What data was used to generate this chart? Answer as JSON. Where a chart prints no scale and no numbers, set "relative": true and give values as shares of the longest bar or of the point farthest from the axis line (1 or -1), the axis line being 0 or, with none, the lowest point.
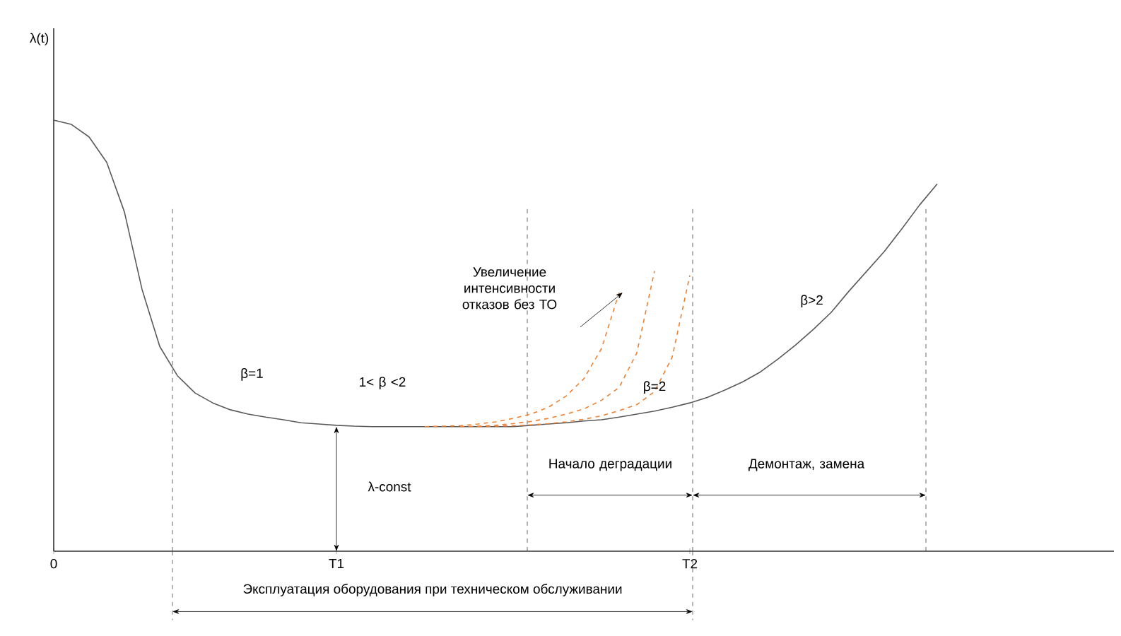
{
  "chart_data": {
    "type": "line",
    "relative": true,
    "categories": [
      "0",
      null,
      null,
      null,
      null,
      null,
      null,
      null,
      null,
      null,
      null,
      null,
      null,
      null,
      null,
      null,
      "T1",
      null,
      null,
      null,
      null,
      null,
      null,
      null,
      null,
      null,
      null,
      null,
      null,
      null,
      null,
      null,
      null,
      null,
      null,
      null,
      "T2",
      null,
      null,
      null,
      null,
      null,
      null,
      null,
      null,
      null,
      null,
      null,
      null,
      null,
      null,
      null,
      null,
      null,
      null,
      null,
      null,
      null,
      null,
      null,
      null
    ],
    "series": [
      {
        "color": "#595959",
        "line_style": "solid",
        "values": [
          1.0,
          0.99,
          0.961,
          0.902,
          0.787,
          0.607,
          0.475,
          0.407,
          0.367,
          0.344,
          0.328,
          0.318,
          0.311,
          0.305,
          0.298,
          0.295,
          0.292,
          0.29,
          0.289,
          0.289,
          0.289,
          0.289,
          0.289,
          0.289,
          0.289,
          0.289,
          0.289,
          0.292,
          0.295,
          0.298,
          0.302,
          0.305,
          0.311,
          0.318,
          0.325,
          0.334,
          0.344,
          0.357,
          0.374,
          0.393,
          0.416,
          0.446,
          0.479,
          0.515,
          0.554,
          0.603,
          0.649,
          0.695,
          0.748,
          0.803,
          0.852,
          null,
          null,
          null,
          null,
          null,
          null,
          null,
          null,
          null,
          null
        ]
      },
      {
        "color": "#f08030",
        "line_style": "dashed",
        "values": [
          null,
          null,
          null,
          null,
          null,
          null,
          null,
          null,
          null,
          null,
          null,
          null,
          null,
          null,
          null,
          null,
          null,
          null,
          null,
          null,
          null,
          0.289,
          0.29,
          0.291,
          0.295,
          0.3,
          0.308,
          0.318,
          0.334,
          0.36,
          0.4,
          0.47,
          0.6,
          null,
          null,
          null,
          null,
          null,
          null,
          null,
          null,
          null,
          null,
          null,
          null,
          null,
          null,
          null,
          null,
          null,
          null,
          null,
          null,
          null,
          null,
          null,
          null,
          null,
          null,
          null,
          null
        ]
      },
      {
        "color": "#f08030",
        "line_style": "dashed",
        "values": [
          null,
          null,
          null,
          null,
          null,
          null,
          null,
          null,
          null,
          null,
          null,
          null,
          null,
          null,
          null,
          null,
          null,
          null,
          null,
          null,
          null,
          null,
          null,
          0.289,
          0.29,
          0.292,
          0.296,
          0.301,
          0.308,
          0.318,
          0.33,
          0.35,
          0.38,
          0.46,
          0.65,
          null,
          null,
          null,
          null,
          null,
          null,
          null,
          null,
          null,
          null,
          null,
          null,
          null,
          null,
          null,
          null,
          null,
          null,
          null,
          null,
          null,
          null,
          null,
          null,
          null,
          null
        ]
      },
      {
        "color": "#f08030",
        "line_style": "dashed",
        "values": [
          null,
          null,
          null,
          null,
          null,
          null,
          null,
          null,
          null,
          null,
          null,
          null,
          null,
          null,
          null,
          null,
          null,
          null,
          null,
          null,
          null,
          null,
          null,
          null,
          0.289,
          0.29,
          0.291,
          0.293,
          0.296,
          0.3,
          0.306,
          0.314,
          0.326,
          0.34,
          0.37,
          0.45,
          0.64,
          null,
          null,
          null,
          null,
          null,
          null,
          null,
          null,
          null,
          null,
          null,
          null,
          null,
          null,
          null,
          null,
          null,
          null,
          null,
          null,
          null,
          null,
          null,
          null
        ]
      }
    ],
    "annotations": [
      "β=1",
      "1< β <2",
      "Увеличение интенсивности отказов без ТО",
      "β=2",
      "β>2",
      "λ-const",
      "Начало деградации",
      "Демонтаж, замена",
      "Эксплуатация оборудования при техническом обслуживании",
      "λ(t)"
    ]
  }
}
